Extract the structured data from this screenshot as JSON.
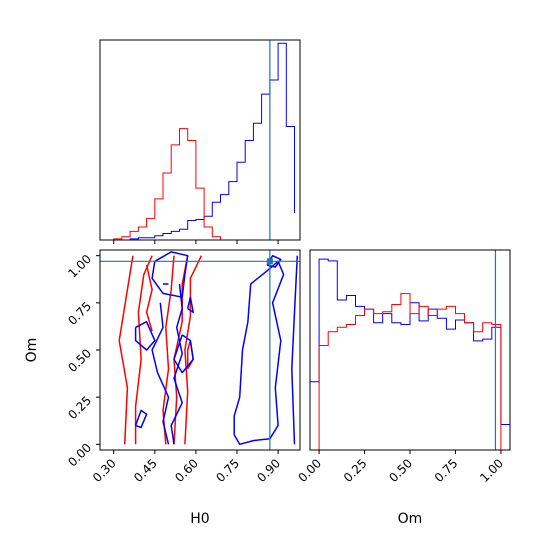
{
  "chart_data": {
    "type": "corner",
    "parameters": [
      "H0",
      "Om"
    ],
    "truth": {
      "H0": 0.87,
      "Om": 0.97
    },
    "colors": {
      "series_a": "#0000ff",
      "series_b": "#ff0000",
      "truth": "#1f77b4"
    },
    "axes": {
      "H0": {
        "label": "H0",
        "range": [
          0.25,
          0.98
        ],
        "ticks": [
          0.3,
          0.45,
          0.6,
          0.75,
          0.9
        ],
        "tick_labels": [
          "0.30",
          "0.45",
          "0.60",
          "0.75",
          "0.90"
        ]
      },
      "Om": {
        "label": "Om",
        "range": [
          -0.03,
          1.03
        ],
        "ticks": [
          0.0,
          0.25,
          0.5,
          0.75,
          1.0
        ],
        "tick_labels": [
          "0.00",
          "0.25",
          "0.50",
          "0.75",
          "1.00"
        ]
      }
    },
    "hist_H0": {
      "bin_edges": [
        0.3,
        0.33,
        0.36,
        0.39,
        0.42,
        0.45,
        0.48,
        0.51,
        0.54,
        0.57,
        0.6,
        0.63,
        0.66,
        0.69,
        0.72,
        0.75,
        0.78,
        0.81,
        0.84,
        0.87,
        0.9,
        0.93,
        0.96
      ],
      "ymax": 185,
      "series": [
        {
          "color": "blue",
          "counts": [
            0,
            0,
            1,
            2,
            2,
            4,
            6,
            8,
            10,
            18,
            19,
            22,
            35,
            42,
            54,
            72,
            92,
            108,
            135,
            148,
            182,
            105,
            25
          ]
        },
        {
          "color": "red",
          "counts": [
            1,
            3,
            8,
            12,
            20,
            38,
            62,
            88,
            103,
            92,
            48,
            12,
            3,
            0,
            0,
            0,
            0,
            0,
            0,
            0,
            0,
            0,
            0
          ]
        }
      ]
    },
    "hist_Om": {
      "bin_edges": [
        -0.05,
        0.0,
        0.05,
        0.1,
        0.15,
        0.2,
        0.25,
        0.3,
        0.35,
        0.4,
        0.45,
        0.5,
        0.55,
        0.6,
        0.65,
        0.7,
        0.75,
        0.8,
        0.85,
        0.9,
        0.95,
        1.0,
        1.05
      ],
      "ymax": 220,
      "series": [
        {
          "color": "blue",
          "counts": [
            75,
            210,
            208,
            165,
            170,
            158,
            155,
            140,
            150,
            140,
            138,
            162,
            142,
            155,
            145,
            133,
            143,
            140,
            120,
            122,
            135,
            28
          ]
        },
        {
          "color": "red",
          "counts": [
            0,
            115,
            130,
            135,
            138,
            148,
            155,
            150,
            152,
            160,
            172,
            150,
            158,
            148,
            155,
            158,
            150,
            140,
            130,
            140,
            138,
            0
          ]
        }
      ]
    },
    "contours": [
      {
        "color": "red",
        "paths": [
          [
            [
              0.34,
              0.0
            ],
            [
              0.35,
              0.3
            ],
            [
              0.32,
              0.55
            ],
            [
              0.35,
              0.82
            ],
            [
              0.37,
              1.0
            ]
          ],
          [
            [
              0.38,
              0.0
            ],
            [
              0.38,
              0.2
            ],
            [
              0.4,
              0.45
            ],
            [
              0.39,
              0.7
            ],
            [
              0.41,
              0.9
            ],
            [
              0.44,
              1.0
            ]
          ],
          [
            [
              0.44,
              0.6
            ],
            [
              0.42,
              0.7
            ],
            [
              0.44,
              0.82
            ],
            [
              0.42,
              0.95
            ]
          ],
          [
            [
              0.49,
              0.0
            ],
            [
              0.48,
              0.18
            ],
            [
              0.5,
              0.4
            ],
            [
              0.49,
              0.62
            ],
            [
              0.51,
              0.82
            ],
            [
              0.52,
              1.0
            ]
          ],
          [
            [
              0.52,
              0.0
            ],
            [
              0.53,
              0.25
            ],
            [
              0.52,
              0.45
            ],
            [
              0.55,
              0.65
            ],
            [
              0.55,
              0.85
            ],
            [
              0.57,
              1.0
            ]
          ],
          [
            [
              0.56,
              0.0
            ],
            [
              0.57,
              0.28
            ],
            [
              0.56,
              0.5
            ],
            [
              0.58,
              0.68
            ],
            [
              0.58,
              0.88
            ],
            [
              0.62,
              1.0
            ]
          ],
          [
            [
              0.57,
              0.4
            ],
            [
              0.57,
              0.5
            ],
            [
              0.58,
              0.55
            ],
            [
              0.59,
              0.45
            ],
            [
              0.57,
              0.4
            ]
          ]
        ]
      },
      {
        "color": "blue",
        "paths": [
          [
            [
              0.45,
              0.97
            ],
            [
              0.51,
              1.02
            ],
            [
              0.57,
              1.0
            ],
            [
              0.56,
              0.9
            ],
            [
              0.55,
              0.78
            ],
            [
              0.48,
              0.8
            ],
            [
              0.44,
              0.88
            ],
            [
              0.45,
              0.97
            ]
          ],
          [
            [
              0.5,
              0.0
            ],
            [
              0.48,
              0.12
            ],
            [
              0.5,
              0.25
            ],
            [
              0.46,
              0.38
            ],
            [
              0.44,
              0.5
            ],
            [
              0.48,
              0.62
            ],
            [
              0.47,
              0.75
            ]
          ],
          [
            [
              0.52,
              0.0
            ],
            [
              0.51,
              0.1
            ],
            [
              0.55,
              0.22
            ],
            [
              0.52,
              0.35
            ],
            [
              0.55,
              0.48
            ],
            [
              0.53,
              0.62
            ],
            [
              0.55,
              0.72
            ],
            [
              0.54,
              0.85
            ]
          ],
          [
            [
              0.38,
              0.62
            ],
            [
              0.42,
              0.65
            ],
            [
              0.45,
              0.55
            ],
            [
              0.42,
              0.5
            ],
            [
              0.38,
              0.55
            ],
            [
              0.38,
              0.62
            ]
          ],
          [
            [
              0.55,
              0.58
            ],
            [
              0.58,
              0.55
            ],
            [
              0.59,
              0.45
            ],
            [
              0.55,
              0.38
            ],
            [
              0.52,
              0.45
            ],
            [
              0.55,
              0.58
            ]
          ],
          [
            [
              0.38,
              0.1
            ],
            [
              0.4,
              0.18
            ],
            [
              0.42,
              0.16
            ],
            [
              0.4,
              0.09
            ],
            [
              0.38,
              0.1
            ]
          ],
          [
            [
              0.57,
              0.72
            ],
            [
              0.58,
              0.78
            ],
            [
              0.59,
              0.7
            ],
            [
              0.57,
              0.72
            ]
          ],
          [
            [
              0.48,
              0.85
            ],
            [
              0.5,
              0.85
            ]
          ],
          [
            [
              0.74,
              0.05
            ],
            [
              0.76,
              0.0
            ],
            [
              0.81,
              0.02
            ],
            [
              0.87,
              0.03
            ],
            [
              0.9,
              0.1
            ],
            [
              0.89,
              0.3
            ],
            [
              0.91,
              0.55
            ],
            [
              0.88,
              0.75
            ],
            [
              0.92,
              0.9
            ],
            [
              0.9,
              0.97
            ],
            [
              0.86,
              0.92
            ],
            [
              0.8,
              0.85
            ],
            [
              0.79,
              0.65
            ],
            [
              0.77,
              0.5
            ],
            [
              0.76,
              0.25
            ],
            [
              0.74,
              0.15
            ],
            [
              0.74,
              0.05
            ]
          ],
          [
            [
              0.86,
              0.95
            ],
            [
              0.88,
              1.0
            ],
            [
              0.91,
              0.98
            ],
            [
              0.89,
              0.94
            ],
            [
              0.86,
              0.95
            ]
          ],
          [
            [
              0.96,
              0.0
            ],
            [
              0.95,
              0.4
            ],
            [
              0.96,
              0.7
            ],
            [
              0.97,
              1.0
            ]
          ]
        ]
      }
    ]
  }
}
